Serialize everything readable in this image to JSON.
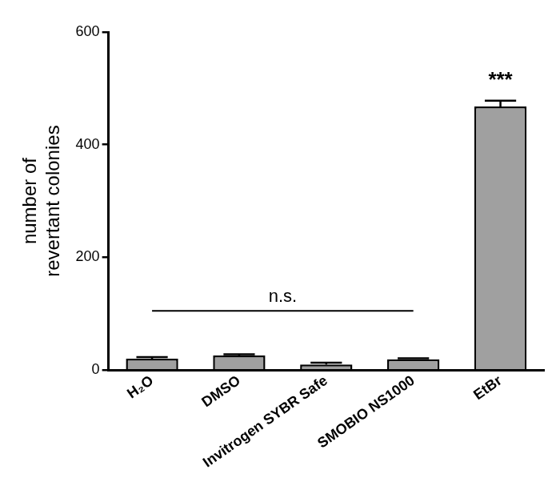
{
  "chart_data": {
    "type": "bar",
    "y_label": [
      "number of",
      "revertant colonies"
    ],
    "categories": [
      "H₂O",
      "DMSO",
      "Invitrogen SYBR Safe",
      "SMOBIO NS1000",
      "EtBr"
    ],
    "values": [
      20,
      26,
      10,
      19,
      468
    ],
    "errors": [
      3,
      2,
      3,
      2,
      10
    ],
    "color": "#a0a0a0",
    "ylim": [
      0,
      600
    ],
    "yticks": [
      0,
      200,
      400,
      600
    ],
    "grid": false,
    "annotations": [
      {
        "text": "n.s.",
        "from": "H₂O",
        "to": "SMOBIO NS1000",
        "y": 105
      },
      {
        "text": "***",
        "at": "EtBr"
      }
    ]
  }
}
